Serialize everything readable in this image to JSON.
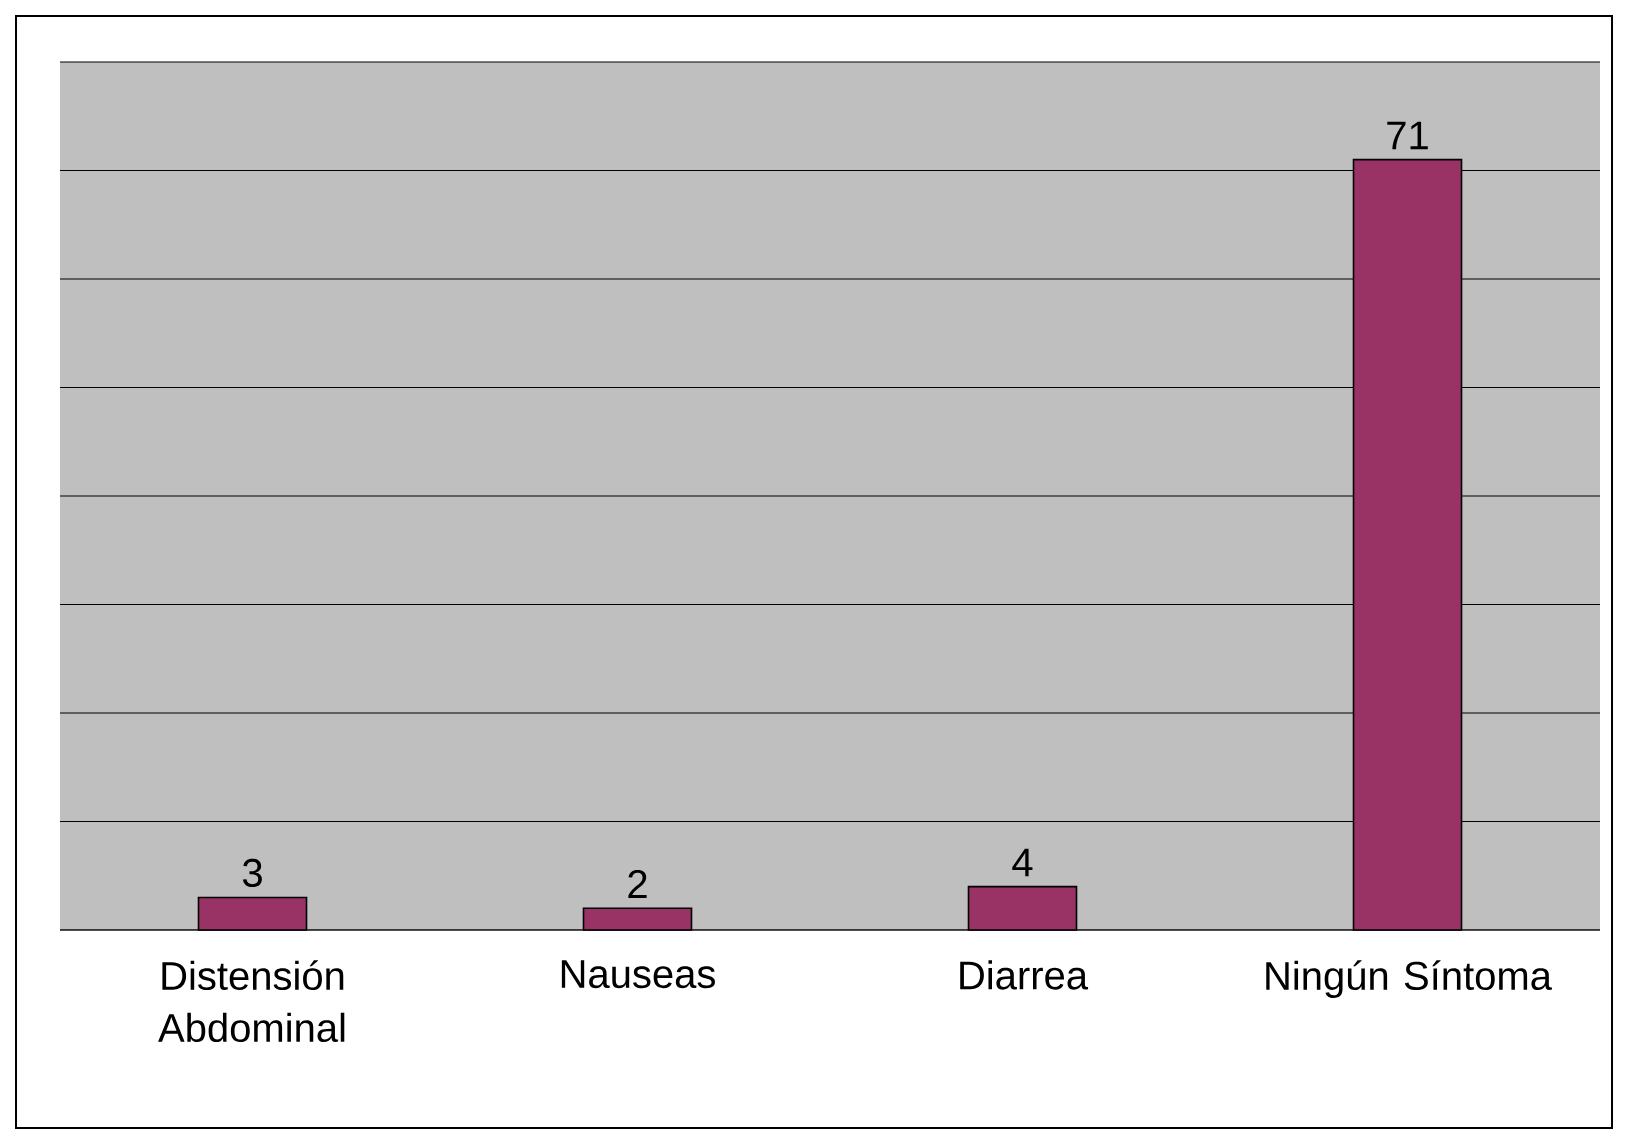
{
  "chart_data": {
    "type": "bar",
    "categories": [
      "Distensión Abdominal",
      "Nauseas",
      "Diarrea",
      "Ningún Síntoma"
    ],
    "values": [
      3,
      2,
      4,
      71
    ],
    "color": "#993366",
    "tick_labels": "x",
    "grid": "y",
    "data_labels": true
  }
}
